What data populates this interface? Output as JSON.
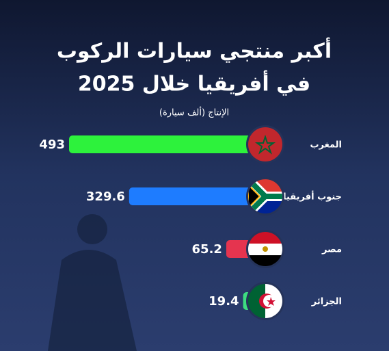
{
  "chart_data": {
    "type": "bar",
    "orientation": "horizontal",
    "title": [
      "أكبر منتجي سيارات الركوب",
      "في أفريقيا خلال 2025"
    ],
    "subtitle": "الإنتاج (ألف سيارة)",
    "categories": [
      "المغرب",
      "جنوب أفريقيا",
      "مصر",
      "الجزائر"
    ],
    "values": [
      493,
      329.6,
      65.2,
      19.4
    ],
    "colors": [
      "#2df23c",
      "#1e7cff",
      "#e5344f",
      "#3ddc80"
    ]
  }
}
